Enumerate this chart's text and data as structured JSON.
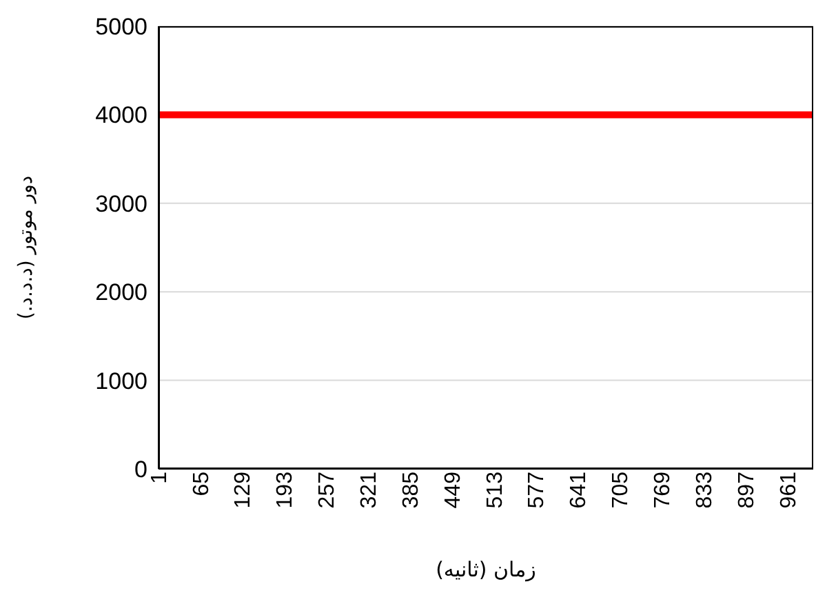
{
  "chart_data": {
    "type": "line",
    "xlabel": "زمان (ثانیه)",
    "ylabel": "دور موتور (د.د.د.)",
    "x": [
      1,
      1000
    ],
    "series": [
      {
        "color": "#ff0000",
        "values": [
          4000,
          4000
        ]
      }
    ],
    "xlim": [
      1,
      1000
    ],
    "xticks": [
      1,
      65,
      129,
      193,
      257,
      321,
      385,
      449,
      513,
      577,
      641,
      705,
      769,
      833,
      897,
      961
    ],
    "ylim": [
      0,
      5000
    ],
    "yticks": [
      0,
      1000,
      2000,
      3000,
      4000,
      5000
    ],
    "grid": "y",
    "legend": false,
    "marker": "none",
    "line_style": "solid"
  }
}
